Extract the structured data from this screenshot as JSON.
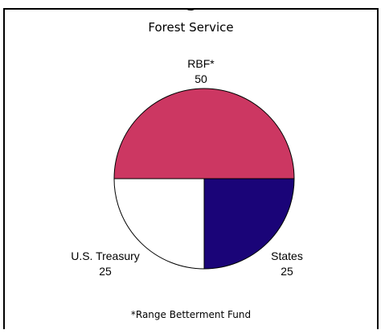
{
  "header": {
    "cut_title": "g"
  },
  "chart_data": {
    "type": "pie",
    "title": "Forest Service",
    "slices": [
      {
        "label": "RBF*",
        "value": 50,
        "color": "#cc3762"
      },
      {
        "label": "States",
        "value": 25,
        "color": "#1a0478"
      },
      {
        "label": "U.S. Treasury",
        "value": 25,
        "color": "#ffffff"
      }
    ],
    "footnote": "*Range Betterment Fund"
  }
}
